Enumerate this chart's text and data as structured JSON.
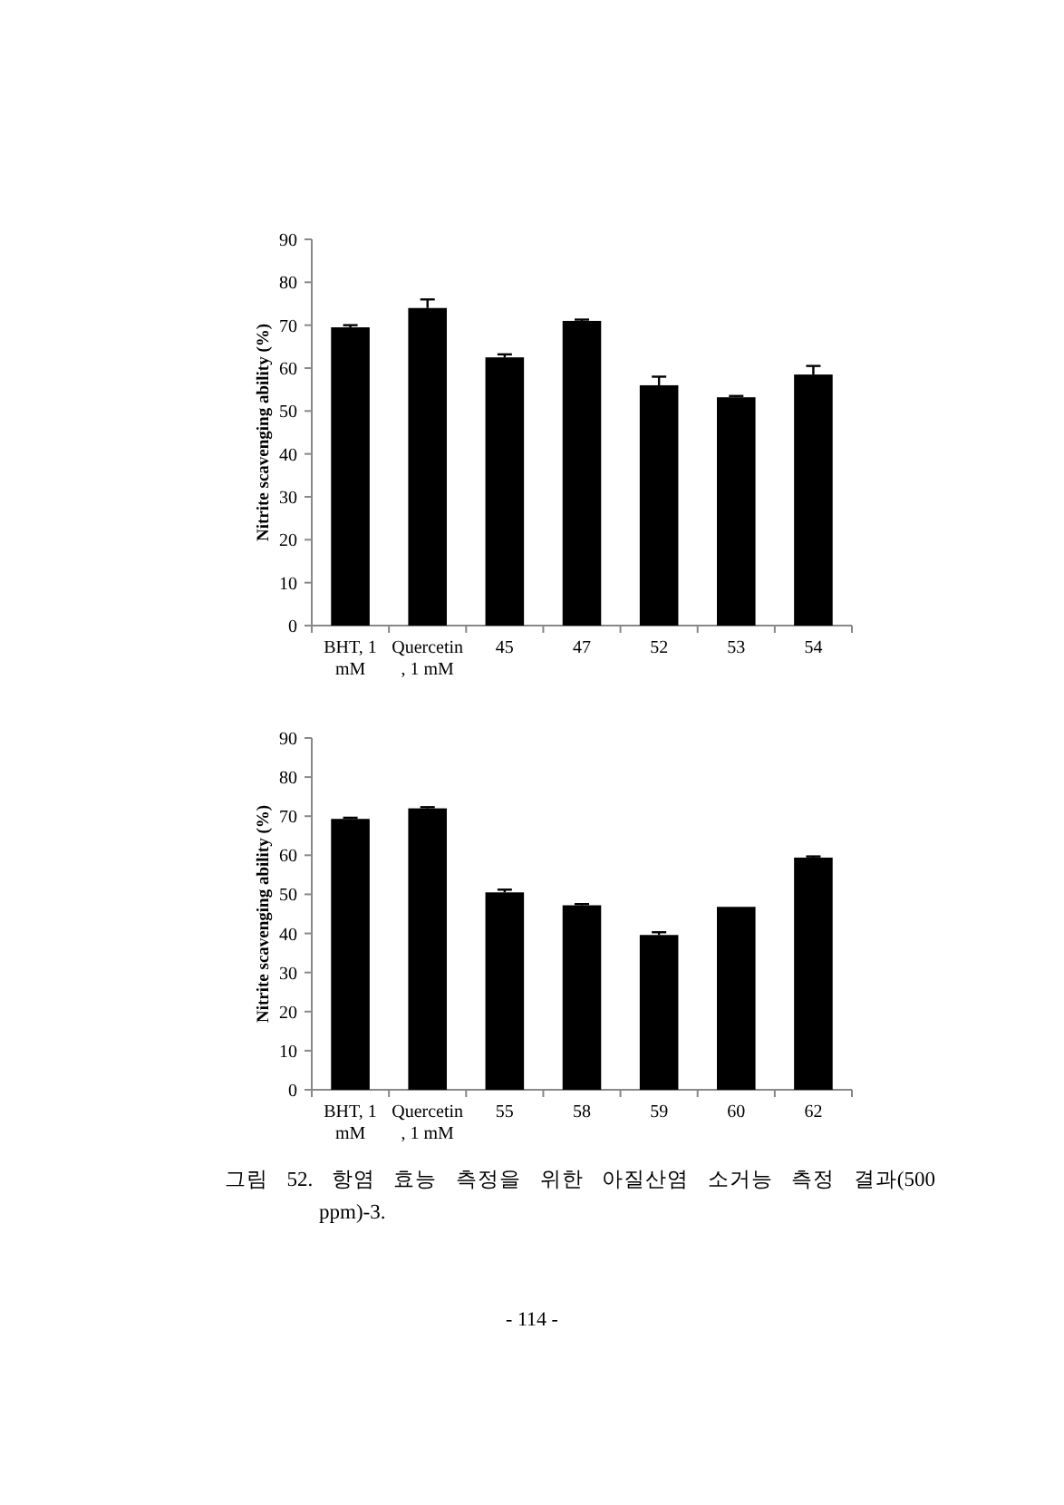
{
  "chart_data": [
    {
      "type": "bar",
      "ylabel": "Nitrite scavenging ability (%)",
      "categories": [
        "BHT, 1 mM",
        "Quercetin , 1 mM",
        "45",
        "47",
        "52",
        "53",
        "54"
      ],
      "color": "#000000",
      "values": [
        69.5,
        74,
        62.5,
        71,
        56,
        53.2,
        58.5
      ],
      "errors": [
        0.5,
        2,
        0.7,
        0.3,
        2,
        0.3,
        2
      ],
      "ylim": [
        0,
        90
      ],
      "yticks": [
        0,
        10,
        20,
        30,
        40,
        50,
        60,
        70,
        80,
        90
      ]
    },
    {
      "type": "bar",
      "ylabel": "Nitrite scavenging ability (%)",
      "categories": [
        "BHT, 1 mM",
        "Quercetin , 1 mM",
        "55",
        "58",
        "59",
        "60",
        "62"
      ],
      "color": "#000000",
      "values": [
        69.3,
        72,
        50.5,
        47.2,
        39.6,
        46.8,
        59.4
      ],
      "errors": [
        0.3,
        0.3,
        0.7,
        0.3,
        0.7,
        null,
        0.3
      ],
      "ylim": [
        0,
        90
      ],
      "yticks": [
        0,
        10,
        20,
        30,
        40,
        50,
        60,
        70,
        80,
        90
      ],
      "annotations": [
        "그림 52. 항염 효능 측정을 위한 아질산염 소거능 측정 결과(500 ppm)-3.",
        "- 114 -"
      ]
    }
  ]
}
